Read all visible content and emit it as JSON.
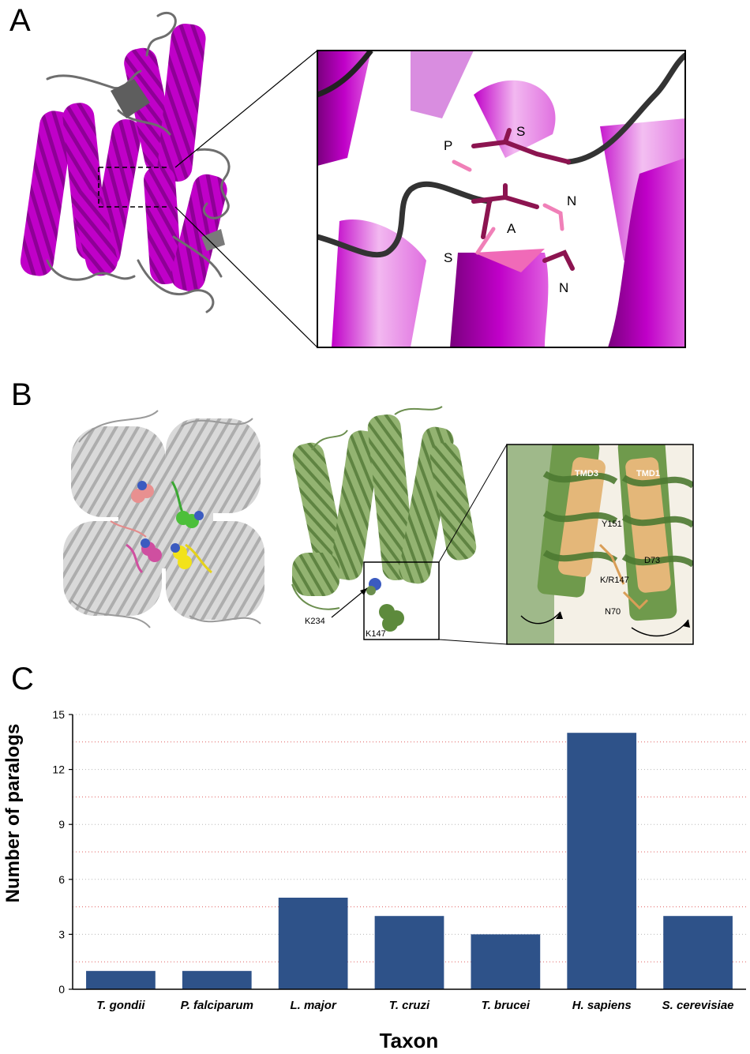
{
  "panels": {
    "a": {
      "letter": "A",
      "inset_labels": [
        "P",
        "S",
        "N",
        "A",
        "S",
        "N"
      ]
    },
    "b": {
      "letter": "B",
      "site_labels": [
        "K234",
        "K147"
      ],
      "inset_labels": [
        "TMD3",
        "TMD1",
        "Y151",
        "D73",
        "K/R147",
        "N70"
      ]
    },
    "c": {
      "letter": "C"
    }
  },
  "colors": {
    "helix_magenta": "#c000c8",
    "loop_gray": "#6e6e6e",
    "motif_maroon": "#8c1450",
    "motif_pink": "#f080b8",
    "green_protein": "#7ea05e",
    "tan_protein": "#e3b77a",
    "bar_blue": "#2e5289",
    "grid_red": "#e06060"
  },
  "chart_data": {
    "type": "bar",
    "categories": [
      "T. gondii",
      "P. falciparum",
      "L. major",
      "T. cruzi",
      "T. brucei",
      "H. sapiens",
      "S. cerevisiae"
    ],
    "values": [
      1,
      1,
      5,
      4,
      3,
      14,
      4
    ],
    "ylabel": "Number of paralogs",
    "xlabel": "Taxon",
    "yticks": [
      0,
      3,
      6,
      9,
      12,
      15
    ],
    "ylim": [
      0,
      15
    ],
    "grid": "horizontal dotted",
    "bar_color": "#2e5289"
  }
}
